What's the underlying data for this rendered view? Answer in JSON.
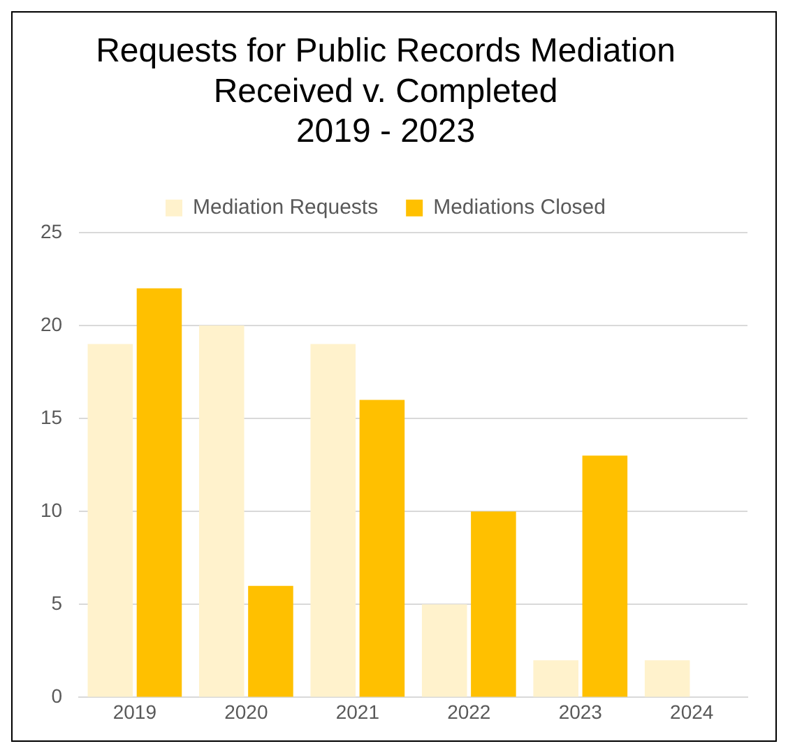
{
  "chart_data": {
    "type": "bar",
    "title": "Requests for Public Records Mediation\nReceived v. Completed\n2019 - 2023",
    "categories": [
      "2019",
      "2020",
      "2021",
      "2022",
      "2023",
      "2024"
    ],
    "series": [
      {
        "name": "Mediation Requests",
        "color": "#fff2cc",
        "values": [
          19,
          20,
          19,
          5,
          2,
          2
        ]
      },
      {
        "name": "Mediations Closed",
        "color": "#ffc000",
        "values": [
          22,
          6,
          16,
          10,
          13,
          null
        ]
      }
    ],
    "ylim": [
      0,
      25
    ],
    "yticks": [
      0,
      5,
      10,
      15,
      20,
      25
    ],
    "grid": "y",
    "legend": "top"
  }
}
